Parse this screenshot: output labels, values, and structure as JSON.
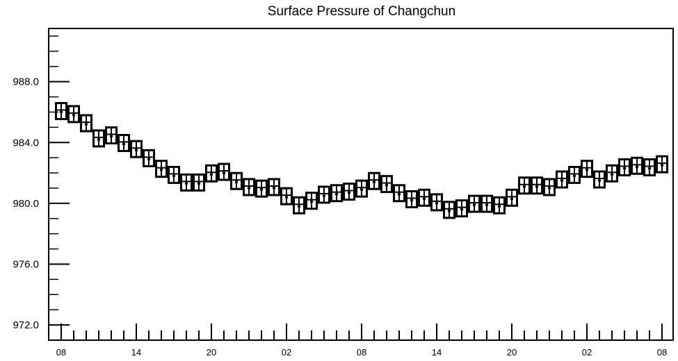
{
  "chart_data": {
    "type": "scatter",
    "title": "Surface Pressure of Changchun",
    "xlabel": "",
    "ylabel": "",
    "ylim": [
      971.0,
      991.5
    ],
    "y_ticks": [
      "972.0",
      "976.0",
      "980.0",
      "984.0",
      "988.0"
    ],
    "x_tick_labels": [
      "08",
      "14",
      "20",
      "02",
      "08",
      "14",
      "20",
      "02",
      "08"
    ],
    "x_hour_start": 8,
    "x_step_hours": 1,
    "grid": false,
    "legend": "none",
    "marker": "boxed-plus",
    "values": [
      986.0,
      985.8,
      985.2,
      984.2,
      984.4,
      983.9,
      983.5,
      982.9,
      982.2,
      981.8,
      981.3,
      981.3,
      981.9,
      982.0,
      981.4,
      981.0,
      980.9,
      981.0,
      980.4,
      979.8,
      980.1,
      980.5,
      980.6,
      980.7,
      980.9,
      981.4,
      981.2,
      980.6,
      980.2,
      980.3,
      980.0,
      979.5,
      979.6,
      979.9,
      979.9,
      979.8,
      980.3,
      981.1,
      981.1,
      981.0,
      981.5,
      981.8,
      982.2,
      981.5,
      981.9,
      982.3,
      982.4,
      982.3,
      982.5
    ],
    "colors": {
      "marker": "#000000",
      "axis": "#000000"
    }
  }
}
